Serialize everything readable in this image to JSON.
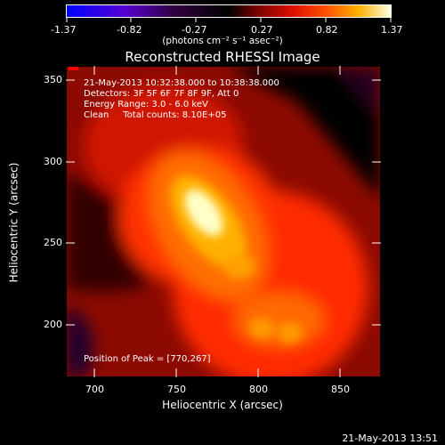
{
  "colorbar": {
    "tick_labels": [
      "-1.37",
      "-0.82",
      "-0.27",
      "0.27",
      "0.82",
      "1.37"
    ],
    "units_label": "(photons cm⁻² s⁻¹ asec⁻²)",
    "color_scale": [
      "#0000ff",
      "#6a00c8",
      "#000000",
      "#b00000",
      "#ff2000",
      "#ff8000",
      "#ffd000",
      "#ffffff"
    ]
  },
  "title": "Reconstructed RHESSI Image",
  "info_lines": [
    "21-May-2013 10:32:38.000 to 10:38:38.000",
    "Detectors: 3F 5F 6F 7F 8F 9F, Att 0",
    "Energy Range: 3.0 - 6.0 keV",
    "Clean     Total counts: 8.10E+05"
  ],
  "peak_label": "Position of Peak = [770,267]",
  "axes": {
    "x_label": "Heliocentric X (arcsec)",
    "y_label": "Heliocentric Y (arcsec)",
    "x_ticks": [
      "700",
      "750",
      "800",
      "850"
    ],
    "y_ticks": [
      "200",
      "250",
      "300",
      "350"
    ]
  },
  "footer_date": "21-May-2013 13:51"
}
